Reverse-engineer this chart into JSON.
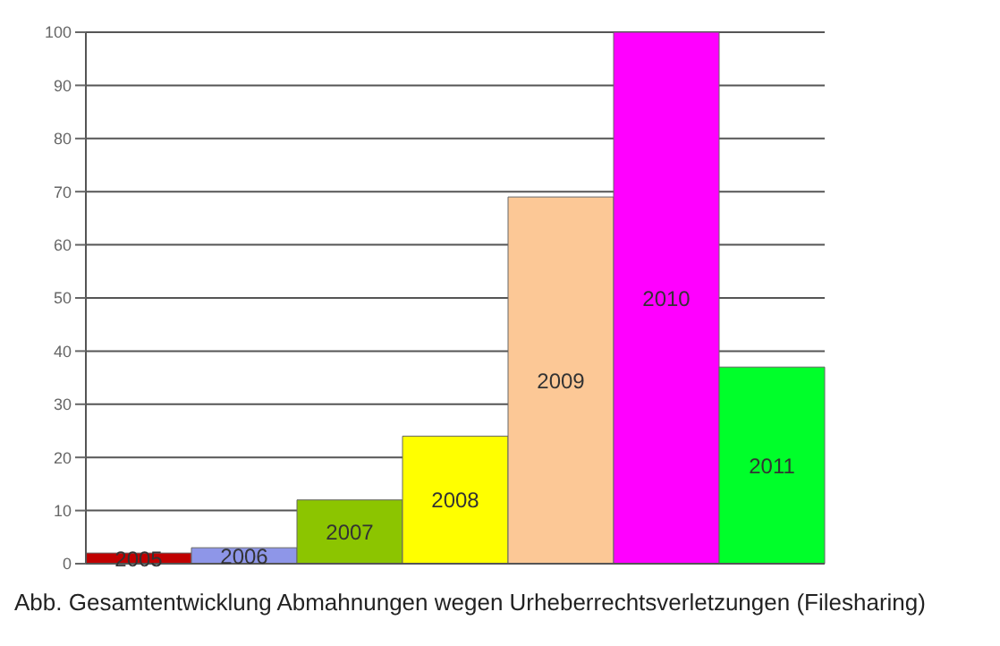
{
  "chart_data": {
    "type": "bar",
    "categories": [
      "2005",
      "2006",
      "2007",
      "2008",
      "2009",
      "2010",
      "2011"
    ],
    "values": [
      2,
      3,
      12,
      24,
      69,
      100,
      37
    ],
    "colors": [
      "#c00000",
      "#8e96e8",
      "#8cc500",
      "#ffff00",
      "#fcc896",
      "#ff00ff",
      "#00ff2a"
    ],
    "ylim": [
      0,
      100
    ],
    "yticks": [
      0,
      10,
      20,
      30,
      40,
      50,
      60,
      70,
      80,
      90,
      100
    ],
    "grid": "y",
    "annotations": [
      "Abb. Gesamtentwicklung Abmahnungen wegen Urheberrechtsverletzungen (Filesharing)"
    ]
  }
}
